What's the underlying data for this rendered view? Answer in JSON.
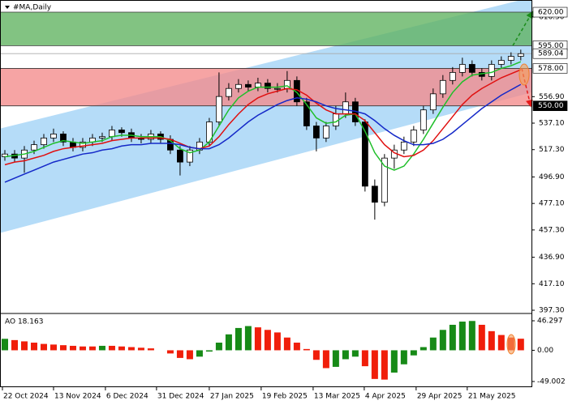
{
  "chart_data": {
    "type": "candlestick",
    "title": "#MA,Daily",
    "xlim": [
      -0.5,
      54.1
    ],
    "xticks": [
      {
        "value": -0.25,
        "label": "22 Oct 2024"
      },
      {
        "value": 5,
        "label": "13 Nov 2024"
      },
      {
        "value": 10.33,
        "label": "6 Dec 2024"
      },
      {
        "value": 15.58,
        "label": "31 Dec 2024"
      },
      {
        "value": 21,
        "label": "27 Jan 2025"
      },
      {
        "value": 26.33,
        "label": "19 Feb 2025"
      },
      {
        "value": 31.67,
        "label": "13 Mar 2025"
      },
      {
        "value": 36.92,
        "label": "4 Apr 2025"
      },
      {
        "value": 42.25,
        "label": "29 Apr 2025"
      },
      {
        "value": 47.5,
        "label": "21 May 2025"
      }
    ],
    "ylim": [
      395.5,
      629.1
    ],
    "yticks": [
      {
        "value": 397.3,
        "label": "397.30"
      },
      {
        "value": 417.1,
        "label": "417.10"
      },
      {
        "value": 436.9,
        "label": "436.90"
      },
      {
        "value": 457.3,
        "label": "457.30"
      },
      {
        "value": 477.1,
        "label": "477.10"
      },
      {
        "value": 496.9,
        "label": "496.90"
      },
      {
        "value": 517.3,
        "label": "517.30"
      },
      {
        "value": 537.1,
        "label": "537.10"
      },
      {
        "value": 556.9,
        "label": "556.90"
      },
      {
        "value": 616.5,
        "label": "616.50"
      }
    ],
    "grid": false,
    "open": [
      512,
      514,
      511,
      517,
      521,
      526,
      529,
      523,
      519,
      523,
      526,
      527,
      532,
      530,
      526,
      525,
      529,
      525,
      517,
      508,
      517,
      523,
      538,
      557,
      563,
      566,
      564,
      567,
      563,
      563,
      569,
      553,
      535,
      526,
      535,
      544,
      553,
      538,
      490,
      478,
      511,
      517,
      523,
      532,
      547,
      559,
      569,
      575,
      581,
      575,
      572,
      581,
      584,
      587
    ],
    "high": [
      517,
      517,
      520,
      524,
      529,
      533,
      531,
      526,
      526,
      529,
      530,
      535,
      534,
      533,
      529,
      532,
      531,
      528,
      520,
      520,
      526,
      541,
      575,
      567,
      570,
      569,
      571,
      570,
      567,
      576,
      572,
      556,
      538,
      538,
      550,
      560,
      556,
      540,
      495,
      514,
      521,
      527,
      535,
      550,
      563,
      573,
      579,
      586,
      584,
      578,
      584,
      587,
      590,
      592
    ],
    "low": [
      509,
      508,
      500,
      514,
      518,
      523,
      520,
      516,
      516,
      520,
      523,
      524,
      527,
      523,
      522,
      522,
      522,
      514,
      498,
      505,
      514,
      520,
      535,
      554,
      560,
      561,
      561,
      560,
      560,
      560,
      550,
      532,
      516,
      523,
      532,
      541,
      535,
      486,
      465,
      475,
      503,
      514,
      520,
      529,
      544,
      556,
      566,
      572,
      572,
      569,
      569,
      578,
      581,
      584
    ],
    "close": [
      514,
      511,
      517,
      521,
      526,
      529,
      523,
      519,
      523,
      526,
      527,
      532,
      530,
      526,
      525,
      529,
      525,
      517,
      508,
      517,
      523,
      538,
      557,
      563,
      566,
      564,
      567,
      563,
      563,
      569,
      553,
      535,
      526,
      535,
      544,
      553,
      538,
      490,
      478,
      511,
      517,
      523,
      532,
      547,
      559,
      569,
      575,
      581,
      575,
      572,
      581,
      584,
      587,
      589
    ],
    "up_color": "#ffffff",
    "down_color": "#000000",
    "lines": [
      {
        "color": "#1fbf2a",
        "values": [
          512,
          513,
          514,
          516,
          519,
          522,
          524,
          523,
          522,
          523,
          524,
          527,
          528,
          528,
          527,
          527,
          527,
          524,
          518,
          515,
          517,
          523,
          535,
          547,
          556,
          561,
          564,
          564,
          564,
          565,
          560,
          551,
          541,
          537,
          538,
          543,
          544,
          531,
          515,
          505,
          502,
          505,
          514,
          525,
          537,
          549,
          560,
          568,
          573,
          574,
          575,
          578,
          580,
          583
        ]
      },
      {
        "color": "#e01010",
        "values": [
          506,
          508,
          509,
          511,
          513,
          516,
          518,
          519,
          520,
          521,
          522,
          524,
          525,
          526,
          526,
          526,
          526,
          525,
          522,
          519,
          518,
          520,
          527,
          536,
          544,
          551,
          556,
          559,
          561,
          563,
          562,
          558,
          552,
          547,
          544,
          544,
          544,
          539,
          530,
          521,
          515,
          512,
          513,
          517,
          524,
          533,
          542,
          551,
          558,
          563,
          567,
          571,
          574,
          577
        ]
      },
      {
        "color": "#1428c8",
        "values": [
          493,
          496,
          499,
          502,
          505,
          508,
          510,
          512,
          514,
          515,
          517,
          518,
          520,
          521,
          521,
          522,
          522,
          522,
          521,
          519,
          518,
          518,
          521,
          526,
          532,
          538,
          543,
          547,
          551,
          554,
          556,
          555,
          553,
          550,
          548,
          547,
          546,
          544,
          539,
          533,
          528,
          524,
          521,
          521,
          522,
          525,
          530,
          536,
          542,
          548,
          553,
          558,
          562,
          566
        ]
      }
    ],
    "levels": [
      {
        "value": 620,
        "label": "620.00",
        "color": "#ffffff"
      },
      {
        "value": 595,
        "label": "595.00",
        "color": "#ffffff"
      },
      {
        "value": 589.04,
        "label": "589.04",
        "color": "#ffffff"
      },
      {
        "value": 578,
        "label": "578.00",
        "color": "#ffffff"
      },
      {
        "value": 550,
        "label": "550.00",
        "color": "#000000"
      }
    ],
    "zones": [
      {
        "low": 595,
        "high": 620,
        "color": "#5fb25f"
      },
      {
        "low": 550,
        "high": 578,
        "color": "#f48a8a"
      }
    ],
    "channel": {
      "upper": [
        533,
        631
      ],
      "lower": [
        455,
        560
      ],
      "color": "#a8d6f7"
    },
    "arrows": [
      {
        "from": 595,
        "to": 620,
        "color": "#1a8c1a"
      },
      {
        "from": 578,
        "to": 550,
        "color": "#e51a1a"
      }
    ],
    "oscillator": {
      "type": "bar",
      "label": "AO 18.163",
      "values": [
        18,
        16,
        14,
        12,
        10,
        9,
        8,
        7,
        6,
        6,
        7,
        7,
        6,
        5,
        4,
        3,
        0,
        -5,
        -12,
        -14,
        -10,
        -2,
        12,
        25,
        35,
        38,
        36,
        32,
        28,
        20,
        12,
        2,
        -15,
        -28,
        -26,
        -14,
        -10,
        -25,
        -45,
        -46,
        -35,
        -22,
        -8,
        5,
        20,
        32,
        40,
        45,
        46,
        40,
        30,
        24,
        20,
        18.163
      ],
      "up_color": "#178a17",
      "down_color": "#f01e0a",
      "ylim": [
        -57.9,
        56.5
      ],
      "yticks": [
        46.297,
        {
          "value": 0,
          "label": "0.00"
        },
        -49.002
      ]
    }
  }
}
